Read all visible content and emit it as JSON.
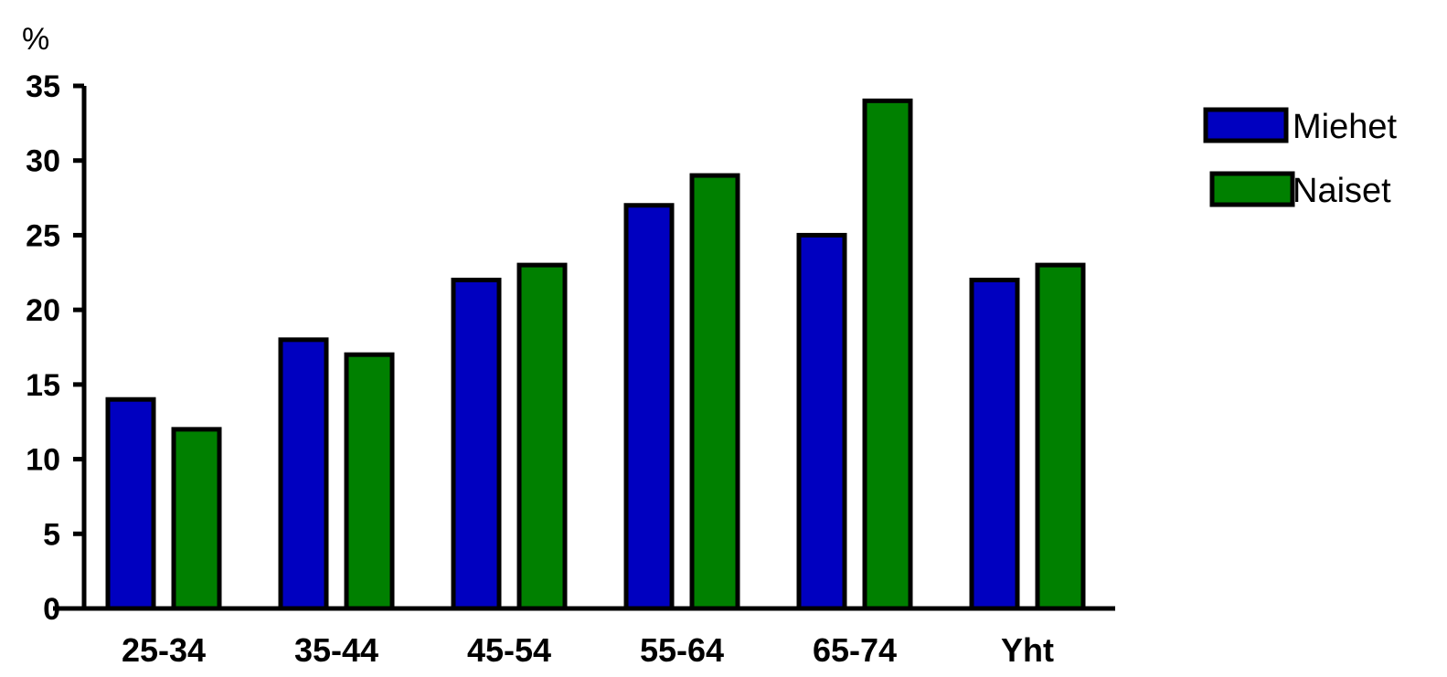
{
  "chart_data": {
    "type": "bar",
    "unit_label": "%",
    "categories": [
      "25-34",
      "35-44",
      "45-54",
      "55-64",
      "65-74",
      "Yht"
    ],
    "series": [
      {
        "name": "Miehet",
        "values": [
          14,
          18,
          22,
          27,
          25,
          22
        ],
        "color": "#0000C0"
      },
      {
        "name": "Naiset",
        "values": [
          12,
          17,
          23,
          29,
          34,
          23
        ],
        "color": "#008000"
      }
    ],
    "ylim": [
      0,
      35
    ],
    "yticks": [
      "0",
      "5",
      "10",
      "15",
      "20",
      "25",
      "30",
      "35"
    ],
    "grid": false,
    "legend_position": "top-right"
  }
}
